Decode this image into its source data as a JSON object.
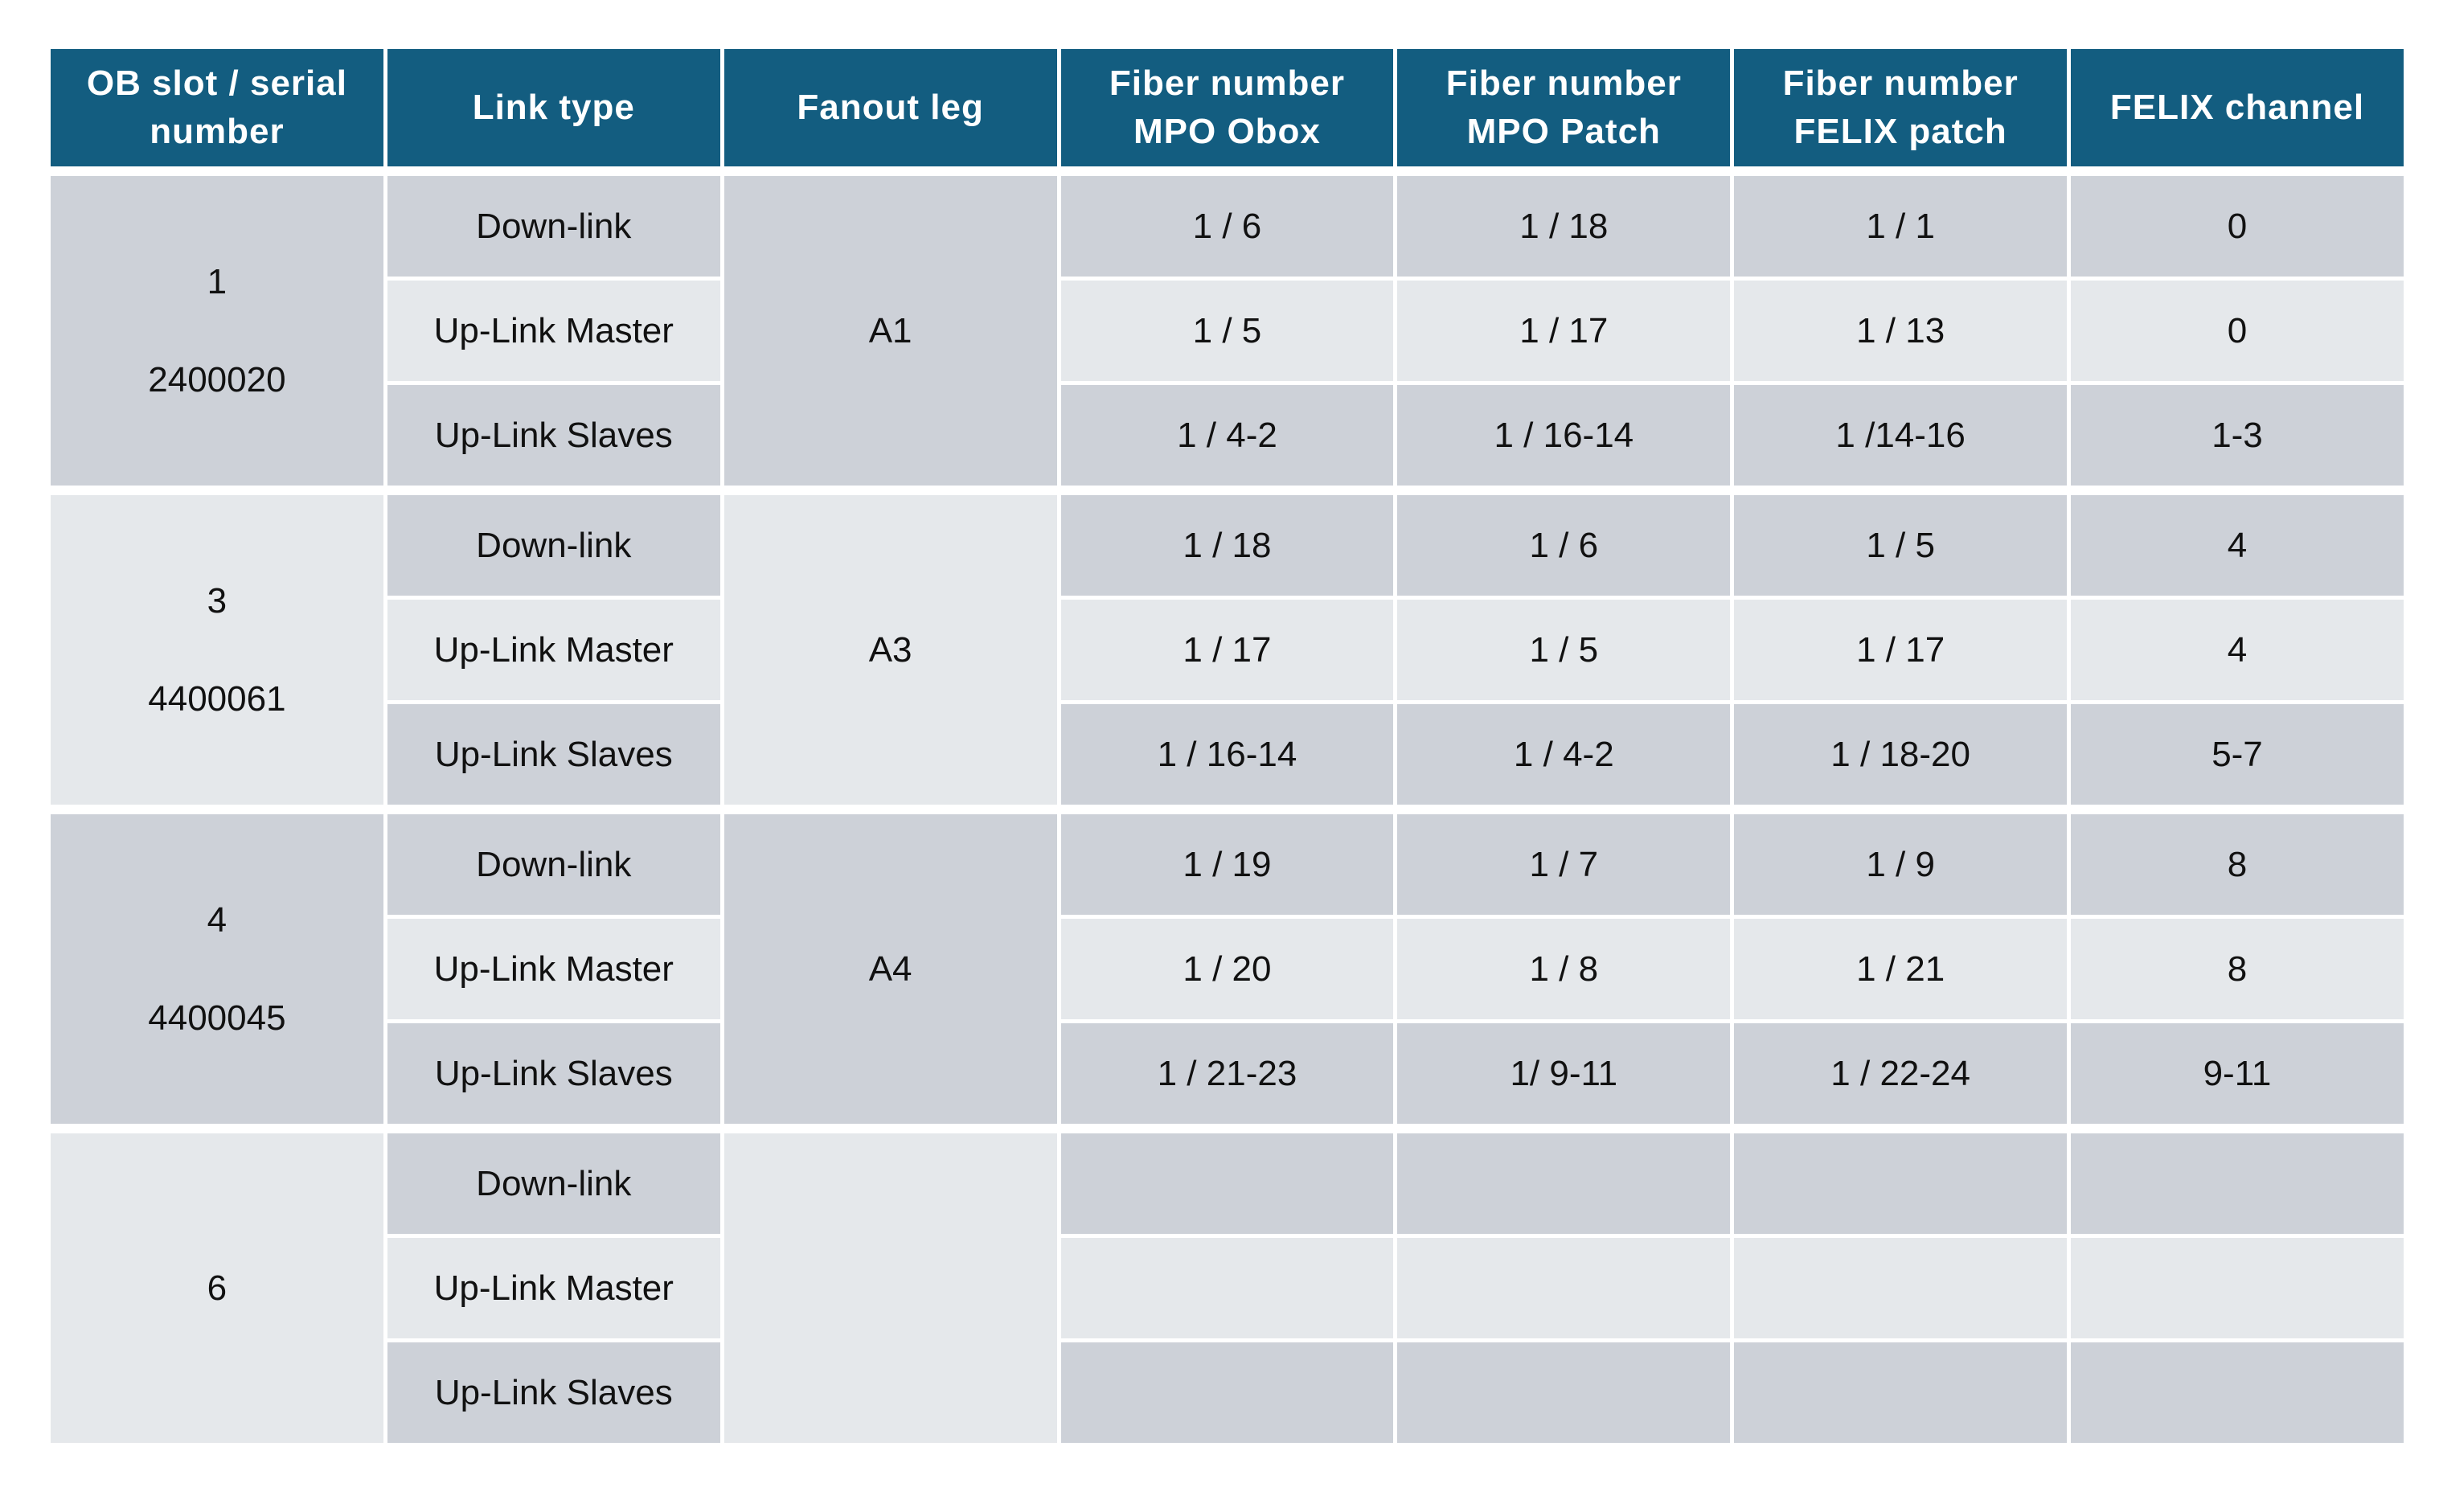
{
  "table": {
    "headers": [
      [
        "OB slot / serial",
        "number"
      ],
      [
        "Link type"
      ],
      [
        "Fanout  leg"
      ],
      [
        "Fiber number",
        "MPO Obox"
      ],
      [
        "Fiber number",
        "MPO Patch"
      ],
      [
        "Fiber number",
        "FELIX patch"
      ],
      [
        "FELIX channel"
      ]
    ],
    "groups": [
      {
        "slot": "1",
        "serial": "2400020",
        "fanout_leg": "A1",
        "rows": [
          {
            "link_type": "Down-link",
            "mpo_obox": "1 / 6",
            "mpo_patch": "1 / 18",
            "felix_patch": "1 / 1",
            "felix_channel": "0"
          },
          {
            "link_type": "Up-Link Master",
            "mpo_obox": "1 / 5",
            "mpo_patch": "1 / 17",
            "felix_patch": "1 / 13",
            "felix_channel": "0"
          },
          {
            "link_type": "Up-Link Slaves",
            "mpo_obox": "1 / 4-2",
            "mpo_patch": "1 / 16-14",
            "felix_patch": "1 /14-16",
            "felix_channel": "1-3"
          }
        ]
      },
      {
        "slot": "3",
        "serial": "4400061",
        "fanout_leg": "A3",
        "rows": [
          {
            "link_type": "Down-link",
            "mpo_obox": "1 / 18",
            "mpo_patch": "1 / 6",
            "felix_patch": "1 / 5",
            "felix_channel": "4"
          },
          {
            "link_type": "Up-Link Master",
            "mpo_obox": "1 / 17",
            "mpo_patch": "1 / 5",
            "felix_patch": "1 / 17",
            "felix_channel": "4"
          },
          {
            "link_type": "Up-Link Slaves",
            "mpo_obox": "1 / 16-14",
            "mpo_patch": "1 / 4-2",
            "felix_patch": "1 / 18-20",
            "felix_channel": "5-7"
          }
        ]
      },
      {
        "slot": "4",
        "serial": "4400045",
        "fanout_leg": "A4",
        "rows": [
          {
            "link_type": "Down-link",
            "mpo_obox": "1 / 19",
            "mpo_patch": "1 / 7",
            "felix_patch": "1 / 9",
            "felix_channel": "8"
          },
          {
            "link_type": "Up-Link Master",
            "mpo_obox": "1 / 20",
            "mpo_patch": "1 / 8",
            "felix_patch": "1 / 21",
            "felix_channel": "8"
          },
          {
            "link_type": "Up-Link Slaves",
            "mpo_obox": "1 / 21-23",
            "mpo_patch": "1/ 9-11",
            "felix_patch": "1 / 22-24",
            "felix_channel": "9-11"
          }
        ]
      },
      {
        "slot": "6",
        "serial": "",
        "fanout_leg": "",
        "rows": [
          {
            "link_type": "Down-link",
            "mpo_obox": "",
            "mpo_patch": "",
            "felix_patch": "",
            "felix_channel": ""
          },
          {
            "link_type": "Up-Link Master",
            "mpo_obox": "",
            "mpo_patch": "",
            "felix_patch": "",
            "felix_channel": ""
          },
          {
            "link_type": "Up-Link Slaves",
            "mpo_obox": "",
            "mpo_patch": "",
            "felix_patch": "",
            "felix_channel": ""
          }
        ]
      }
    ]
  },
  "colors": {
    "header_background": "#135d80",
    "header_text": "#ffffff",
    "cell_dark": "#cdd1d8",
    "cell_light": "#e5e8eb",
    "grid_lines": "#ffffff"
  }
}
